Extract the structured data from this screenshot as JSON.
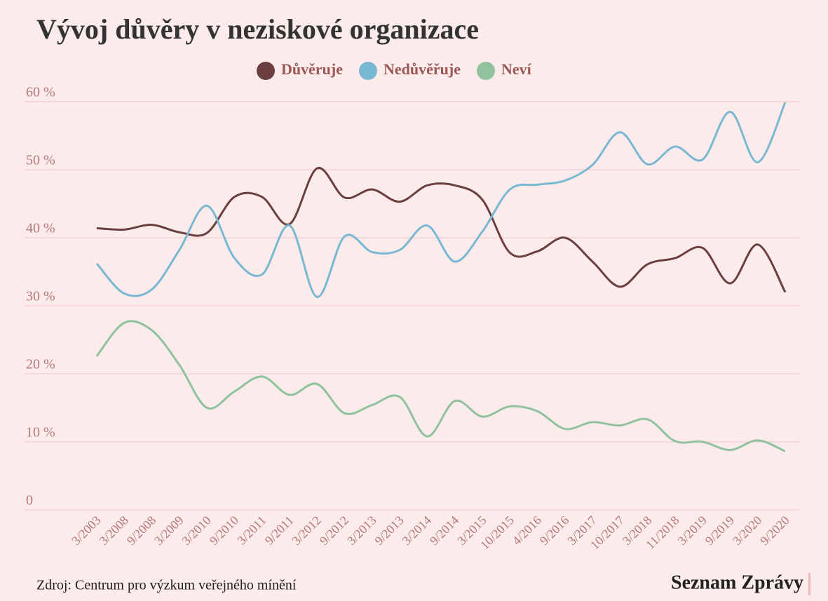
{
  "chart_data": {
    "type": "line",
    "title": "Vývoj důvěry v neziskové organizace",
    "categories": [
      "3/2003",
      "3/2008",
      "9/2008",
      "3/2009",
      "3/2010",
      "9/2010",
      "3/2011",
      "9/2011",
      "3/2012",
      "9/2012",
      "3/2013",
      "9/2013",
      "3/2014",
      "9/2014",
      "3/2015",
      "10/2015",
      "4/2016",
      "9/2016",
      "3/2017",
      "10/2017",
      "3/2018",
      "11/2018",
      "3/2019",
      "9/2019",
      "3/2020",
      "9/2020"
    ],
    "series": [
      {
        "name": "Důvěruje",
        "color": "#6b3f3f",
        "values": [
          41.4,
          41.2,
          41.9,
          40.8,
          40.7,
          46,
          46,
          42,
          50.2,
          45.9,
          47.1,
          45.3,
          47.7,
          47.7,
          45.6,
          37.8,
          38,
          40,
          36.5,
          32.8,
          36.1,
          37,
          38.5,
          33.3,
          39,
          32
        ]
      },
      {
        "name": "Nedůvěřuje",
        "color": "#79b8d3",
        "values": [
          36.2,
          31.8,
          32.4,
          38.2,
          44.7,
          37,
          34.6,
          41.8,
          31.3,
          40.2,
          37.9,
          38.2,
          41.8,
          36.5,
          40.9,
          47.1,
          47.8,
          48.4,
          50.7,
          55.5,
          50.8,
          53.4,
          51.5,
          58.5,
          51.1,
          59.9
        ]
      },
      {
        "name": "Neví",
        "color": "#8fc29d",
        "values": [
          22.6,
          27.5,
          26.4,
          21.3,
          15,
          17.4,
          19.6,
          16.9,
          18.5,
          14.2,
          15.4,
          16.6,
          10.8,
          16,
          13.7,
          15.2,
          14.5,
          11.9,
          12.9,
          12.4,
          13.3,
          10.1,
          10,
          8.8,
          10.2,
          8.6
        ]
      }
    ],
    "ylim": [
      0,
      60
    ],
    "yticks": [
      0,
      {
        "value": 10,
        "label": "10 %"
      },
      {
        "value": 20,
        "label": "20 %"
      },
      {
        "value": 30,
        "label": "30 %"
      },
      {
        "value": 40,
        "label": "40 %"
      },
      {
        "value": 50,
        "label": "50 %"
      },
      {
        "value": 60,
        "label": "60 %"
      }
    ],
    "grid": true,
    "source": "Zdroj: Centrum pro výzkum veřejného mínění",
    "brand": "Seznam Zprávy"
  }
}
